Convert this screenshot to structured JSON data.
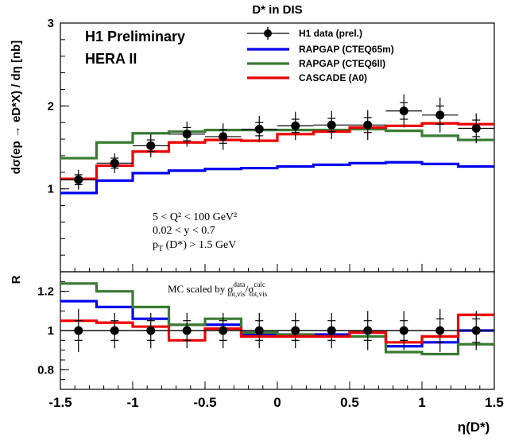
{
  "chart_data": [
    {
      "type": "line",
      "title": "D* in DIS",
      "ylabel": "dσ(ep → eD*X) / dη [nb]",
      "ylim": [
        0,
        3
      ],
      "yticks": [
        "1",
        "2",
        "3"
      ],
      "tick_values": [
        1,
        2,
        3
      ],
      "log_scale": false,
      "grid": false,
      "annotations": {
        "experiment": "H1 Preliminary",
        "run": "HERA II",
        "cut1": "5 < Q² < 100 GeV²",
        "cut2": "0.02 < y < 0.7",
        "cut3_main": "p",
        "cut3_sub": "T",
        "cut3_rest": " (D*) > 1.5 GeV"
      },
      "legend_position": "top-right",
      "legend": [
        {
          "label": "H1 data (prel.)",
          "kind": "marker",
          "color": "#000000"
        },
        {
          "label": "RAPGAP (CTEQ65m)",
          "kind": "line",
          "color": "#0000ee"
        },
        {
          "label": "RAPGAP (CTEQ6ll)",
          "kind": "line",
          "color": "#3a7a32"
        },
        {
          "label": "CASCADE (A0)",
          "kind": "line",
          "color": "#ee0000"
        }
      ],
      "bin_edges": [
        -1.5,
        -1.25,
        -1.0,
        -0.75,
        -0.5,
        -0.25,
        0.0,
        0.25,
        0.5,
        0.75,
        1.0,
        1.25,
        1.5
      ],
      "data_points": {
        "x": [
          -1.375,
          -1.125,
          -0.875,
          -0.625,
          -0.375,
          -0.125,
          0.125,
          0.375,
          0.625,
          0.875,
          1.125,
          1.375
        ],
        "y": [
          1.11,
          1.31,
          1.52,
          1.66,
          1.63,
          1.72,
          1.76,
          1.77,
          1.77,
          1.94,
          1.89,
          1.73
        ],
        "err_stat": [
          0.06,
          0.06,
          0.07,
          0.08,
          0.08,
          0.08,
          0.08,
          0.08,
          0.09,
          0.1,
          0.11,
          0.1
        ],
        "err_tot": [
          0.12,
          0.12,
          0.14,
          0.15,
          0.16,
          0.16,
          0.17,
          0.17,
          0.18,
          0.2,
          0.21,
          0.18
        ]
      },
      "series": [
        {
          "label_ref": "RAPGAP (CTEQ65m)",
          "color": "#0000ee",
          "values": [
            0.95,
            1.1,
            1.19,
            1.22,
            1.24,
            1.25,
            1.27,
            1.29,
            1.31,
            1.32,
            1.3,
            1.27
          ]
        },
        {
          "label_ref": "RAPGAP (CTEQ6ll)",
          "color": "#3a7a32",
          "values": [
            1.37,
            1.56,
            1.67,
            1.69,
            1.71,
            1.71,
            1.71,
            1.71,
            1.72,
            1.7,
            1.64,
            1.59
          ]
        },
        {
          "label_ref": "CASCADE (A0)",
          "color": "#ee0000",
          "values": [
            1.12,
            1.28,
            1.45,
            1.56,
            1.59,
            1.58,
            1.66,
            1.69,
            1.74,
            1.76,
            1.79,
            1.78
          ]
        }
      ]
    },
    {
      "type": "line",
      "ylabel": "R",
      "xlabel": "η(D*)",
      "ylim": [
        0.7,
        1.3
      ],
      "xlim": [
        -1.5,
        1.5
      ],
      "log_scale": false,
      "grid": false,
      "yticks": [
        "0.8",
        "1",
        "1.2"
      ],
      "tick_values": [
        0.8,
        1.0,
        1.2
      ],
      "xticks": [
        "-1.5",
        "-1",
        "-0.5",
        "0",
        "0.5",
        "1",
        "1.5"
      ],
      "xtick_values": [
        -1.5,
        -1.0,
        -0.5,
        0.0,
        0.5,
        1.0,
        1.5
      ],
      "annotation": {
        "prefix": "MC scaled by σ",
        "num_sup": "data",
        "num_sub": "tot,vis",
        "slash": "/σ",
        "den_sup": "calc",
        "den_sub": "tot,vis"
      },
      "reference_line": 1.0,
      "bin_edges": [
        -1.5,
        -1.25,
        -1.0,
        -0.75,
        -0.5,
        -0.25,
        0.0,
        0.25,
        0.5,
        0.75,
        1.0,
        1.25,
        1.5
      ],
      "data_points": {
        "x": [
          -1.375,
          -1.125,
          -0.875,
          -0.625,
          -0.375,
          -0.125,
          0.125,
          0.375,
          0.625,
          0.875,
          1.125,
          1.375
        ],
        "y": [
          1.0,
          1.0,
          1.0,
          1.0,
          1.0,
          1.0,
          1.0,
          1.0,
          1.0,
          1.0,
          1.0,
          1.0
        ],
        "err_stat": [
          0.05,
          0.05,
          0.05,
          0.05,
          0.05,
          0.05,
          0.05,
          0.05,
          0.05,
          0.05,
          0.06,
          0.06
        ],
        "err_tot": [
          0.11,
          0.09,
          0.09,
          0.09,
          0.09,
          0.09,
          0.09,
          0.09,
          0.1,
          0.1,
          0.11,
          0.1
        ]
      },
      "series": [
        {
          "label_ref": "RAPGAP (CTEQ65m)",
          "color": "#0000ee",
          "values": [
            1.15,
            1.12,
            1.06,
            1.03,
            1.03,
            0.98,
            0.98,
            0.98,
            0.99,
            0.92,
            0.94,
            1.0
          ]
        },
        {
          "label_ref": "RAPGAP (CTEQ6ll)",
          "color": "#3a7a32",
          "values": [
            1.24,
            1.2,
            1.12,
            1.03,
            1.06,
            0.99,
            0.98,
            0.97,
            0.97,
            0.89,
            0.88,
            0.93
          ]
        },
        {
          "label_ref": "CASCADE (A0)",
          "color": "#ee0000",
          "values": [
            1.05,
            1.04,
            1.02,
            0.95,
            1.01,
            0.97,
            0.97,
            0.97,
            0.99,
            0.94,
            0.97,
            1.08
          ]
        }
      ]
    }
  ]
}
